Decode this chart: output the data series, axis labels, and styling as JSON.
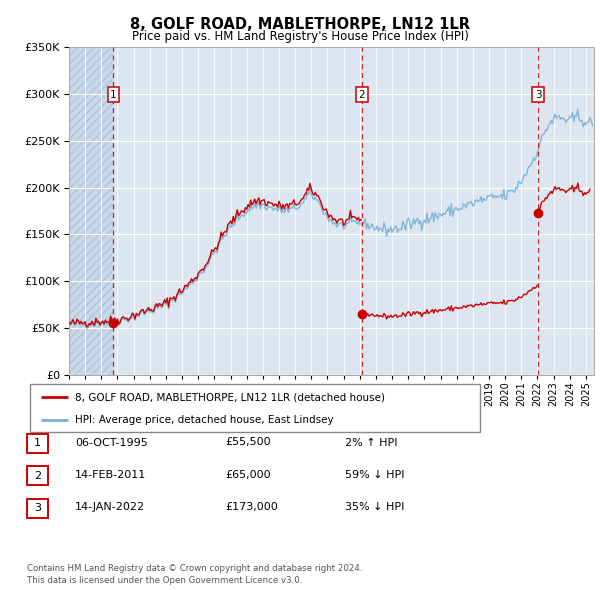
{
  "title": "8, GOLF ROAD, MABLETHORPE, LN12 1LR",
  "subtitle": "Price paid vs. HM Land Registry's House Price Index (HPI)",
  "ylim": [
    0,
    350000
  ],
  "yticks": [
    0,
    50000,
    100000,
    150000,
    200000,
    250000,
    300000,
    350000
  ],
  "hpi_color": "#7bafd4",
  "price_color": "#cc0000",
  "vline_color": "#cc0000",
  "transactions": [
    {
      "price": 55500,
      "label": "1",
      "x": 1995.75
    },
    {
      "price": 65000,
      "label": "2",
      "x": 2011.12
    },
    {
      "price": 173000,
      "label": "3",
      "x": 2022.04
    }
  ],
  "legend_entries": [
    "8, GOLF ROAD, MABLETHORPE, LN12 1LR (detached house)",
    "HPI: Average price, detached house, East Lindsey"
  ],
  "table_rows": [
    {
      "num": "1",
      "date": "06-OCT-1995",
      "price": "£55,500",
      "hpi": "2% ↑ HPI"
    },
    {
      "num": "2",
      "date": "14-FEB-2011",
      "price": "£65,000",
      "hpi": "59% ↓ HPI"
    },
    {
      "num": "3",
      "date": "14-JAN-2022",
      "price": "£173,000",
      "hpi": "35% ↓ HPI"
    }
  ],
  "footer": "Contains HM Land Registry data © Crown copyright and database right 2024.\nThis data is licensed under the Open Government Licence v3.0.",
  "xmin": 1993.0,
  "xmax": 2025.5
}
